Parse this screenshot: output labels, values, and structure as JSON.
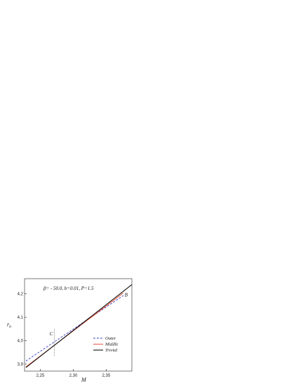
{
  "chart_data": {
    "type": "line",
    "title": "β= - 50.0,  b=0.01,   P=1.5",
    "xlabel": "M",
    "ylabel": "r_h",
    "ylabel_main": "r",
    "ylabel_sub": "h",
    "xlim": [
      2.226,
      2.389
    ],
    "ylim": [
      3.87,
      4.265
    ],
    "x_ticks": [
      2.25,
      2.3,
      2.35
    ],
    "x_tick_labels": [
      "2,25",
      "2,30",
      "2,35"
    ],
    "y_ticks": [
      3.9,
      4.0,
      4.1,
      4.2
    ],
    "y_tick_labels": [
      "3,9",
      "4,0",
      "4,1",
      "4,2"
    ],
    "grid": false,
    "legend_position": "right",
    "series": [
      {
        "name": "Outer",
        "color": "#3b3fc8",
        "dash": "dashed",
        "x": [
          2.228,
          2.376
        ],
        "y": [
          3.913,
          4.193
        ]
      },
      {
        "name": "Middle",
        "color": "#e8452a",
        "dash": "solid",
        "x": [
          2.228,
          2.376
        ],
        "y": [
          3.888,
          4.204
        ]
      },
      {
        "name": "Trivial",
        "color": "#111111",
        "dash": "solid",
        "x": [
          2.228,
          2.389
        ],
        "y": [
          3.885,
          4.24
        ]
      }
    ],
    "annotations": [
      {
        "label": "B",
        "x": 2.378,
        "y": 4.188
      },
      {
        "label": "C",
        "x": 2.264,
        "y": 4.023
      }
    ],
    "marker_line": {
      "x": 2.271,
      "y": [
        3.935,
        4.05
      ]
    }
  }
}
